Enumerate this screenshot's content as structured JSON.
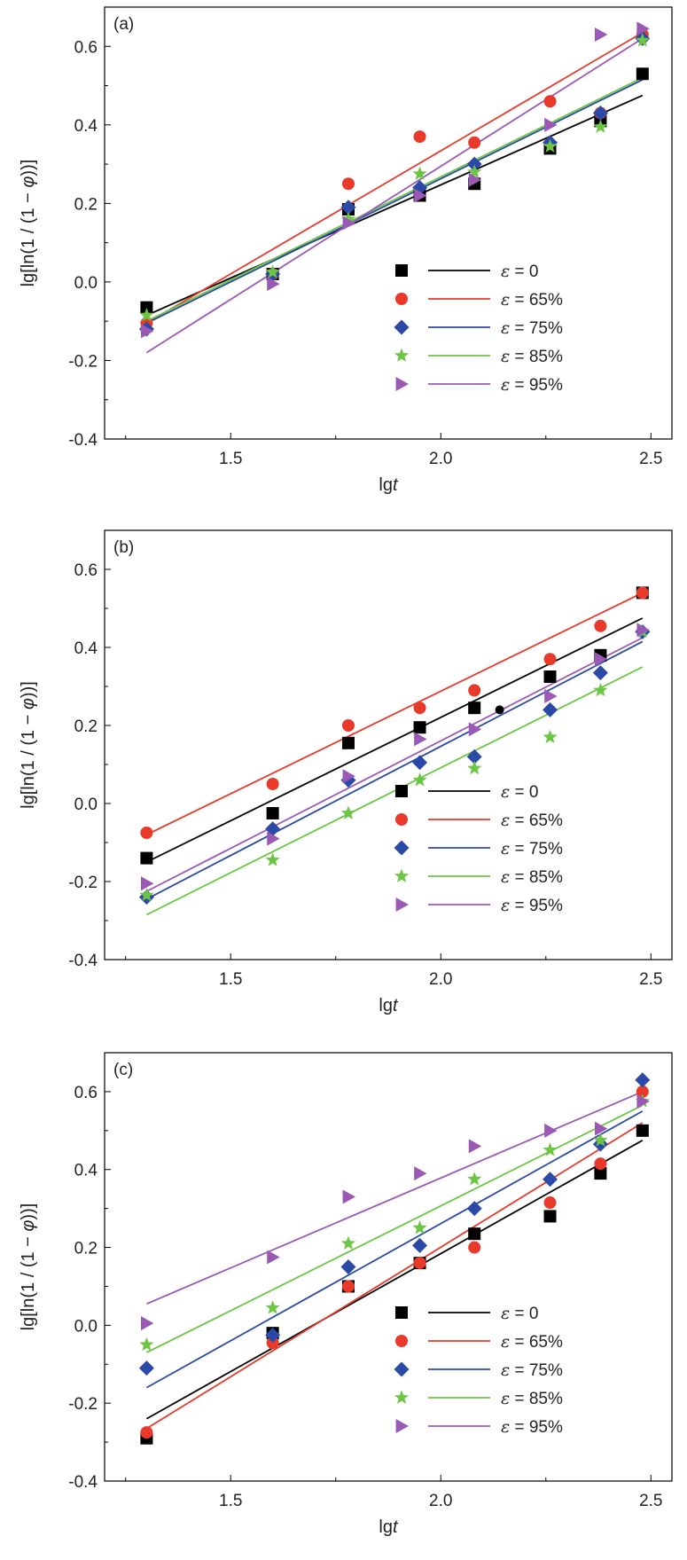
{
  "chart_data": [
    {
      "type": "scatter",
      "panel_label": "(a)",
      "xlabel_main": "lg",
      "xlabel_var": "t",
      "ylabel_pre": "lg[ln(1 / (1 − ",
      "ylabel_var": "φ",
      "ylabel_post": "))]",
      "xlim": [
        1.2,
        2.55
      ],
      "ylim": [
        -0.4,
        0.7
      ],
      "x_ticks": [
        1.5,
        2.0,
        2.5
      ],
      "x_tick_labels": [
        "1.5",
        "2.0",
        "2.5"
      ],
      "y_ticks": [
        -0.4,
        -0.2,
        0.0,
        0.2,
        0.4,
        0.6
      ],
      "y_tick_labels": [
        "-0.4",
        "-0.2",
        "0.0",
        "0.2",
        "0.4",
        "0.6"
      ],
      "legend_position": "bottom-right",
      "x": [
        1.3,
        1.6,
        1.78,
        1.95,
        2.08,
        2.26,
        2.38,
        2.48
      ],
      "series": [
        {
          "name": "ε = 0",
          "label_var": "ε",
          "label_value": " = 0",
          "marker": "square",
          "color": "#000000",
          "values": [
            -0.065,
            0.02,
            0.185,
            0.22,
            0.25,
            0.34,
            0.41,
            0.53
          ],
          "fit": [
            [
              1.3,
              -0.085
            ],
            [
              2.48,
              0.475
            ]
          ]
        },
        {
          "name": "ε = 65%",
          "label_var": "ε",
          "label_value": " = 65%",
          "marker": "circle",
          "color": "#e8392a",
          "values": [
            -0.105,
            0.02,
            0.25,
            0.37,
            0.355,
            0.46,
            0.43,
            0.63
          ],
          "fit": [
            [
              1.3,
              -0.105
            ],
            [
              2.48,
              0.635
            ]
          ]
        },
        {
          "name": "ε = 75%",
          "label_var": "ε",
          "label_value": " = 75%",
          "marker": "diamond",
          "color": "#2b4aa8",
          "values": [
            -0.12,
            0.02,
            0.19,
            0.24,
            0.3,
            0.355,
            0.43,
            0.62
          ],
          "fit": [
            [
              1.3,
              -0.105
            ],
            [
              2.48,
              0.515
            ]
          ]
        },
        {
          "name": "ε = 85%",
          "label_var": "ε",
          "label_value": " = 85%",
          "marker": "star",
          "color": "#6cc644",
          "values": [
            -0.085,
            0.025,
            0.16,
            0.275,
            0.28,
            0.345,
            0.395,
            0.615
          ],
          "fit": [
            [
              1.3,
              -0.1
            ],
            [
              2.48,
              0.52
            ]
          ]
        },
        {
          "name": "ε = 95%",
          "label_var": "ε",
          "label_value": " = 95%",
          "marker": "triangle-right",
          "color": "#9b59b6",
          "values": [
            -0.125,
            -0.005,
            0.15,
            0.22,
            0.26,
            0.4,
            0.63,
            0.645
          ],
          "fit": [
            [
              1.3,
              -0.18
            ],
            [
              2.48,
              0.62
            ]
          ]
        }
      ]
    },
    {
      "type": "scatter",
      "panel_label": "(b)",
      "xlabel_main": "lg",
      "xlabel_var": "t",
      "ylabel_pre": "lg[ln(1 / (1 − ",
      "ylabel_var": "φ",
      "ylabel_post": "))]",
      "xlim": [
        1.2,
        2.55
      ],
      "ylim": [
        -0.4,
        0.7
      ],
      "x_ticks": [
        1.5,
        2.0,
        2.5
      ],
      "x_tick_labels": [
        "1.5",
        "2.0",
        "2.5"
      ],
      "y_ticks": [
        -0.4,
        -0.2,
        0.0,
        0.2,
        0.4,
        0.6
      ],
      "y_tick_labels": [
        "-0.4",
        "-0.2",
        "0.0",
        "0.2",
        "0.4",
        "0.6"
      ],
      "legend_position": "bottom-right",
      "x": [
        1.3,
        1.6,
        1.78,
        1.95,
        2.08,
        2.26,
        2.38,
        2.48
      ],
      "extra_points": [
        {
          "series": 0,
          "x": 2.14,
          "y": 0.24,
          "marker": "circle"
        }
      ],
      "series": [
        {
          "name": "ε = 0",
          "label_var": "ε",
          "label_value": " = 0",
          "marker": "square",
          "color": "#000000",
          "values": [
            -0.14,
            -0.025,
            0.155,
            0.195,
            0.245,
            0.325,
            0.38,
            0.54
          ],
          "fit": [
            [
              1.3,
              -0.15
            ],
            [
              2.48,
              0.475
            ]
          ]
        },
        {
          "name": "ε = 65%",
          "label_var": "ε",
          "label_value": " = 65%",
          "marker": "circle",
          "color": "#e8392a",
          "values": [
            -0.075,
            0.05,
            0.2,
            0.245,
            0.29,
            0.37,
            0.455,
            0.54
          ],
          "fit": [
            [
              1.3,
              -0.08
            ],
            [
              2.48,
              0.54
            ]
          ]
        },
        {
          "name": "ε = 75%",
          "label_var": "ε",
          "label_value": " = 75%",
          "marker": "diamond",
          "color": "#2b4aa8",
          "values": [
            -0.24,
            -0.065,
            0.06,
            0.105,
            0.12,
            0.24,
            0.335,
            0.44
          ],
          "fit": [
            [
              1.3,
              -0.245
            ],
            [
              2.48,
              0.415
            ]
          ]
        },
        {
          "name": "ε = 85%",
          "label_var": "ε",
          "label_value": " = 85%",
          "marker": "star",
          "color": "#6cc644",
          "values": [
            -0.235,
            -0.145,
            -0.025,
            0.06,
            0.09,
            0.17,
            0.29,
            0.44
          ],
          "fit": [
            [
              1.3,
              -0.285
            ],
            [
              2.48,
              0.35
            ]
          ]
        },
        {
          "name": "ε = 95%",
          "label_var": "ε",
          "label_value": " = 95%",
          "marker": "triangle-right",
          "color": "#9b59b6",
          "values": [
            -0.205,
            -0.09,
            0.07,
            0.165,
            0.19,
            0.275,
            0.37,
            0.445
          ],
          "fit": [
            [
              1.3,
              -0.225
            ],
            [
              2.48,
              0.425
            ]
          ]
        }
      ]
    },
    {
      "type": "scatter",
      "panel_label": "(c)",
      "xlabel_main": "lg",
      "xlabel_var": "t",
      "ylabel_pre": "lg[ln(1 / (1 − ",
      "ylabel_var": "φ",
      "ylabel_post": "))]",
      "xlim": [
        1.2,
        2.55
      ],
      "ylim": [
        -0.4,
        0.7
      ],
      "x_ticks": [
        1.5,
        2.0,
        2.5
      ],
      "x_tick_labels": [
        "1.5",
        "2.0",
        "2.5"
      ],
      "y_ticks": [
        -0.4,
        -0.2,
        0.0,
        0.2,
        0.4,
        0.6
      ],
      "y_tick_labels": [
        "-0.4",
        "-0.2",
        "0.0",
        "0.2",
        "0.4",
        "0.6"
      ],
      "legend_position": "bottom-right",
      "x": [
        1.3,
        1.6,
        1.78,
        1.95,
        2.08,
        2.26,
        2.38,
        2.48
      ],
      "series": [
        {
          "name": "ε = 0",
          "label_var": "ε",
          "label_value": " = 0",
          "marker": "square",
          "color": "#000000",
          "values": [
            -0.29,
            -0.02,
            0.1,
            0.16,
            0.235,
            0.28,
            0.39,
            0.5
          ],
          "fit": [
            [
              1.3,
              -0.24
            ],
            [
              2.48,
              0.475
            ]
          ]
        },
        {
          "name": "ε = 65%",
          "label_var": "ε",
          "label_value": " = 65%",
          "marker": "circle",
          "color": "#e8392a",
          "values": [
            -0.275,
            -0.045,
            0.1,
            0.16,
            0.2,
            0.315,
            0.415,
            0.6
          ],
          "fit": [
            [
              1.3,
              -0.265
            ],
            [
              2.48,
              0.52
            ]
          ]
        },
        {
          "name": "ε = 75%",
          "label_var": "ε",
          "label_value": " = 75%",
          "marker": "diamond",
          "color": "#2b4aa8",
          "values": [
            -0.11,
            -0.025,
            0.15,
            0.205,
            0.3,
            0.375,
            0.465,
            0.63
          ],
          "fit": [
            [
              1.3,
              -0.16
            ],
            [
              2.48,
              0.55
            ]
          ]
        },
        {
          "name": "ε = 85%",
          "label_var": "ε",
          "label_value": " = 85%",
          "marker": "star",
          "color": "#6cc644",
          "values": [
            -0.05,
            0.045,
            0.21,
            0.25,
            0.375,
            0.45,
            0.475,
            0.575
          ],
          "fit": [
            [
              1.3,
              -0.07
            ],
            [
              2.48,
              0.565
            ]
          ]
        },
        {
          "name": "ε = 95%",
          "label_var": "ε",
          "label_value": " = 95%",
          "marker": "triangle-right",
          "color": "#9b59b6",
          "values": [
            0.005,
            0.175,
            0.33,
            0.39,
            0.46,
            0.5,
            0.505,
            0.575
          ],
          "fit": [
            [
              1.3,
              0.055
            ],
            [
              2.48,
              0.6
            ]
          ]
        }
      ]
    }
  ]
}
